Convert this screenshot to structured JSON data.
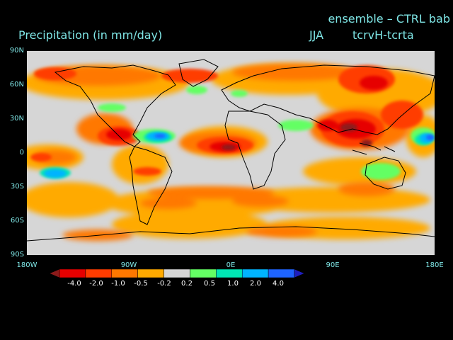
{
  "header": {
    "title": "Precipitation (in mm/day)",
    "run": "ensemble – CTRL bab",
    "season": "JJA",
    "difference": "tcrvH-tcrta"
  },
  "axes": {
    "lat_labels": [
      "90N",
      "60N",
      "30N",
      "0",
      "30S",
      "60S",
      "90S"
    ],
    "lon_labels": [
      "180W",
      "90W",
      "0E",
      "90E",
      "180E"
    ]
  },
  "colorbar": {
    "levels": [
      "-4.0",
      "-2.0",
      "-1.0",
      "-0.5",
      "-0.2",
      "0.2",
      "0.5",
      "1.0",
      "2.0",
      "4.0"
    ],
    "colors": [
      "#8c1a1a",
      "#e60000",
      "#ff3c00",
      "#ff7800",
      "#ffaa00",
      "#d6d6d6",
      "#64ff64",
      "#00e6b4",
      "#00b4ff",
      "#1e64ff",
      "#1e1ebe"
    ]
  },
  "palette": {
    "background": "#000000",
    "label_color": "#7fe6e6",
    "neutral": "#d6d6d6",
    "coast": "#000000"
  }
}
